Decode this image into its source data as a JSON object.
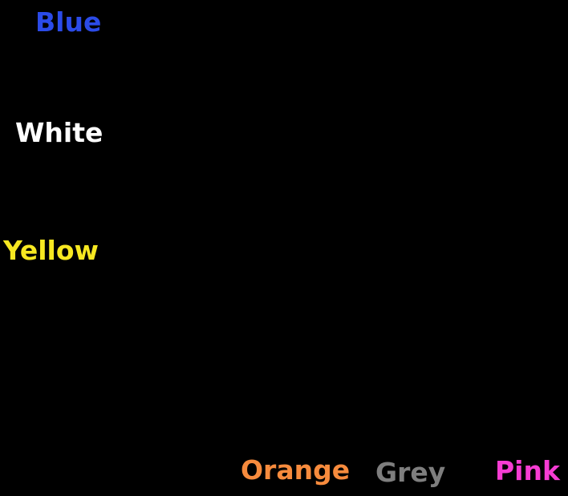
{
  "canvas": {
    "background": "#000000"
  },
  "labels": [
    {
      "text": "Blue",
      "color": "#2B4BE8"
    },
    {
      "text": "White",
      "color": "#FFFFFF"
    },
    {
      "text": "Yellow",
      "color": "#F7E821"
    },
    {
      "text": "Orange",
      "color": "#F78B3D"
    },
    {
      "text": "Grey",
      "color": "#7E7E7E"
    },
    {
      "text": "Pink",
      "color": "#F63CD3"
    }
  ]
}
